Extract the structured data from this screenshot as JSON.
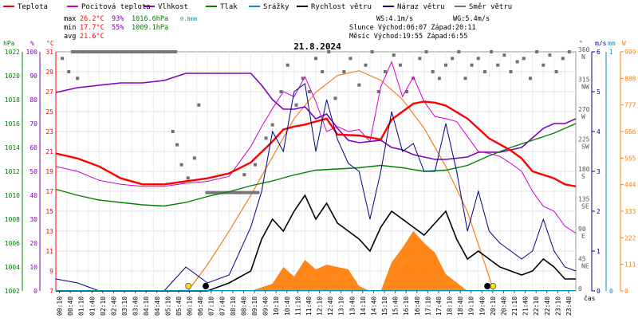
{
  "chart_data": {
    "type": "line",
    "title": "21.8.2024",
    "legend": [
      {
        "name": "Teplota",
        "color": "#ff0000"
      },
      {
        "name": "Pocitová teplota",
        "color": "#d000d0"
      },
      {
        "name": "Vlhkost",
        "color": "#8000c0"
      },
      {
        "name": "Tlak",
        "color": "#008000"
      },
      {
        "name": "Srážky",
        "color": "#0090c0"
      },
      {
        "name": "Rychlost větru",
        "color": "#000000"
      },
      {
        "name": "Náraz větru",
        "color": "#000080"
      },
      {
        "name": "Směr větru",
        "color": "#707070"
      }
    ],
    "stats": {
      "max": {
        "label": "max",
        "temp": "26.2°C",
        "humidity": "93%",
        "pressure": "1016.6hPa",
        "rain": "0.0mm"
      },
      "min": {
        "label": "min",
        "temp": "17.7°C",
        "humidity": "55%",
        "pressure": "1009.1hPa"
      },
      "avg": {
        "label": "avg",
        "temp": "21.6°C"
      }
    },
    "info": {
      "ws": "WS:4.1m/s",
      "wg": "WG:5.4m/s",
      "sun": "Slunce Východ:06:07  Západ:20:11",
      "moon": "Měsíc  Východ:19:55  Západ:6:55"
    },
    "axis_titles": {
      "hpa": "hPa",
      "pct": "%",
      "degc": "°C",
      "deg": "°",
      "ms": "m/s",
      "mm": "mm",
      "wm2": "W",
      "time": "čas"
    },
    "axes": {
      "hpa_ticks": [
        "1022",
        "1020",
        "1018",
        "1016",
        "1014",
        "1012",
        "1010",
        "1008",
        "1006",
        "1004",
        "1002"
      ],
      "pct_ticks": [
        "100",
        "90",
        "80",
        "70",
        "60",
        "50",
        "40",
        "30",
        "20",
        "10",
        "0"
      ],
      "degc_ticks": [
        "31",
        "29",
        "27",
        "25",
        "23",
        "21",
        "19",
        "17",
        "15",
        "13",
        "11",
        "9",
        "7"
      ],
      "dir_ticks": [
        {
          "deg": "360",
          "dir": "N"
        },
        {
          "deg": "315",
          "dir": "NW"
        },
        {
          "deg": "270",
          "dir": "W"
        },
        {
          "deg": "225",
          "dir": "SW"
        },
        {
          "deg": "180",
          "dir": "S"
        },
        {
          "deg": "135",
          "dir": "SE"
        },
        {
          "deg": "90",
          "dir": "E"
        },
        {
          "deg": "45",
          "dir": "NE"
        },
        {
          "deg": "0",
          "dir": ""
        }
      ],
      "ms_ticks": [
        "6",
        "5",
        "4",
        "3",
        "2",
        "1",
        "0"
      ],
      "mm_ticks": [
        "1",
        "0"
      ],
      "wm2_ticks": [
        "999",
        "888",
        "777",
        "666",
        "555",
        "444",
        "333",
        "222",
        "111",
        "0"
      ],
      "time_ticks": [
        "00:10",
        "00:40",
        "01:10",
        "01:40",
        "02:10",
        "02:40",
        "03:10",
        "03:40",
        "04:10",
        "04:40",
        "05:10",
        "05:40",
        "06:10",
        "06:40",
        "07:10",
        "07:40",
        "08:10",
        "08:40",
        "09:10",
        "09:40",
        "10:10",
        "10:40",
        "11:10",
        "11:40",
        "12:10",
        "12:40",
        "13:10",
        "13:40",
        "14:10",
        "14:40",
        "15:10",
        "15:40",
        "16:10",
        "16:40",
        "17:10",
        "17:40",
        "18:10",
        "18:40",
        "19:10",
        "19:40",
        "20:10",
        "20:40",
        "21:10",
        "21:40",
        "22:10",
        "22:40",
        "23:10",
        "23:40"
      ]
    },
    "units": {
      "temp": "°C",
      "humidity": "%",
      "pressure": "hPa",
      "wind": "m/s",
      "direction": "°",
      "rain": "mm",
      "radiation": "W/m²"
    },
    "x_range_hours": [
      0,
      24
    ],
    "temperature": {
      "t": [
        0,
        1,
        2,
        3,
        4,
        5,
        6,
        7,
        8,
        9,
        10,
        10.5,
        11,
        11.5,
        12,
        12.5,
        13,
        14,
        15,
        15.5,
        16,
        16.5,
        17,
        17.5,
        18,
        19,
        19.5,
        20,
        21,
        21.5,
        22,
        23,
        23.5,
        24
      ],
      "values": [
        20.8,
        20.3,
        19.5,
        18.3,
        17.7,
        17.7,
        18.0,
        18.3,
        18.8,
        19.9,
        22.0,
        23.2,
        23.5,
        23.7,
        24.0,
        24.3,
        22.7,
        22.6,
        22.2,
        24.2,
        25.0,
        25.8,
        26.0,
        25.9,
        25.6,
        24.3,
        23.3,
        22.3,
        21.1,
        20.3,
        19.0,
        18.3,
        17.7,
        17.5
      ]
    },
    "feels_like": {
      "t": [
        0,
        1,
        2,
        3,
        4,
        5,
        6,
        7,
        8,
        9,
        9.5,
        10,
        10.5,
        11,
        11.5,
        12,
        12.5,
        13,
        13.5,
        14,
        14.5,
        15,
        15.5,
        16,
        16.5,
        17,
        17.5,
        18,
        18.5,
        19,
        19.5,
        20,
        20.5,
        21,
        21.5,
        22,
        22.5,
        23,
        23.5,
        24
      ],
      "values": [
        19.5,
        19.0,
        18.1,
        17.7,
        17.5,
        17.5,
        17.8,
        18.0,
        18.5,
        21.5,
        23.5,
        25.3,
        27.0,
        26.5,
        28.5,
        26.0,
        23.0,
        23.5,
        23.0,
        23.2,
        22.0,
        27.5,
        30.0,
        26.5,
        28.5,
        26.0,
        24.5,
        24.3,
        24.0,
        22.5,
        21.0,
        20.8,
        20.5,
        19.8,
        19.0,
        17.0,
        15.5,
        15.0,
        13.5,
        12.8
      ]
    },
    "humidity": {
      "t": [
        0,
        1,
        2,
        3,
        4,
        5,
        6,
        7,
        8,
        9,
        9.5,
        10,
        10.5,
        11,
        11.5,
        12,
        12.5,
        13,
        13.5,
        14,
        15,
        15.5,
        16,
        16.5,
        17,
        17.5,
        18,
        19,
        19.5,
        20,
        20.5,
        21,
        21.5,
        22,
        22.5,
        23,
        23.5,
        24
      ],
      "values": [
        83,
        85,
        86,
        87,
        87,
        88,
        91,
        91,
        91,
        91,
        86,
        80,
        76,
        76,
        77,
        72,
        74,
        68,
        63,
        62,
        63,
        60,
        59,
        57,
        56,
        55,
        55,
        56,
        58,
        58,
        58,
        59,
        60,
        64,
        68,
        70,
        70,
        72
      ]
    },
    "pressure": {
      "t": [
        0,
        1,
        2,
        3,
        4,
        5,
        6,
        7,
        8,
        9,
        10,
        11,
        12,
        13,
        14,
        15,
        16,
        17,
        18,
        19,
        20,
        21,
        22,
        23,
        24
      ],
      "values": [
        1010.5,
        1010.0,
        1009.6,
        1009.4,
        1009.2,
        1009.1,
        1009.4,
        1009.9,
        1010.3,
        1010.8,
        1011.2,
        1011.7,
        1012.1,
        1012.2,
        1012.3,
        1012.5,
        1012.3,
        1012.0,
        1012.1,
        1012.5,
        1013.3,
        1014.0,
        1014.6,
        1015.2,
        1016.0
      ]
    },
    "wind_speed": {
      "t": [
        0,
        1,
        2,
        3,
        4,
        5,
        6,
        7,
        8,
        9,
        9.5,
        10,
        10.5,
        11,
        11.5,
        12,
        12.5,
        13,
        13.5,
        14,
        14.5,
        15,
        15.5,
        16,
        16.5,
        17,
        17.5,
        18,
        18.5,
        19,
        19.5,
        20,
        20.5,
        21,
        21.5,
        22,
        22.5,
        23,
        23.5,
        24
      ],
      "values": [
        0,
        0,
        0,
        0,
        0,
        0,
        0,
        0,
        0.2,
        0.5,
        1.3,
        1.8,
        1.5,
        2.0,
        2.4,
        1.8,
        2.2,
        1.7,
        1.5,
        1.3,
        1.0,
        1.6,
        2.0,
        1.8,
        1.6,
        1.4,
        1.7,
        2.0,
        1.3,
        0.8,
        1.0,
        0.8,
        0.6,
        0.5,
        0.4,
        0.5,
        0.8,
        0.6,
        0.3,
        0.3
      ]
    },
    "wind_gust": {
      "t": [
        0,
        1,
        2,
        3,
        4,
        5,
        6,
        7,
        8,
        9,
        9.5,
        10,
        10.5,
        11,
        11.5,
        12,
        12.5,
        13,
        13.5,
        14,
        14.5,
        15,
        15.5,
        16,
        16.5,
        17,
        17.5,
        18,
        18.5,
        19,
        19.5,
        20,
        20.5,
        21,
        21.5,
        22,
        22.5,
        23,
        23.5,
        24
      ],
      "values": [
        0.3,
        0.2,
        0,
        0,
        0,
        0,
        0.6,
        0.2,
        0.4,
        1.6,
        2.5,
        4.0,
        3.5,
        5.0,
        5.2,
        3.5,
        4.8,
        3.8,
        3.2,
        3.0,
        1.8,
        3.0,
        4.5,
        3.5,
        3.7,
        3.0,
        3.0,
        4.2,
        3.0,
        1.5,
        2.5,
        1.5,
        1.2,
        1.0,
        0.8,
        1.0,
        1.8,
        1.0,
        0.6,
        0.5
      ]
    },
    "wind_direction_scatter_deg": {
      "t": [
        0.3,
        0.6,
        1.0,
        5.4,
        5.6,
        5.8,
        6.1,
        6.4,
        6.6,
        8.7,
        9.2,
        9.7,
        10.0,
        10.4,
        10.7,
        11.1,
        11.4,
        11.7,
        12.0,
        12.3,
        12.6,
        12.9,
        13.3,
        13.6,
        14.0,
        14.3,
        14.6,
        14.9,
        15.2,
        15.6,
        15.9,
        16.2,
        16.5,
        16.8,
        17.1,
        17.4,
        17.7,
        18.0,
        18.3,
        18.6,
        18.9,
        19.2,
        19.5,
        19.8,
        20.1,
        20.4,
        20.7,
        21.0,
        21.3,
        21.6,
        21.9,
        22.2,
        22.5,
        22.8,
        23.1,
        23.4,
        23.7
      ],
      "values": [
        350,
        330,
        320,
        240,
        220,
        190,
        170,
        200,
        280,
        175,
        190,
        230,
        250,
        300,
        340,
        280,
        320,
        300,
        350,
        330,
        360,
        290,
        330,
        350,
        310,
        340,
        360,
        300,
        330,
        355,
        340,
        300,
        320,
        350,
        360,
        330,
        320,
        340,
        350,
        360,
        320,
        340,
        350,
        330,
        360,
        340,
        355,
        330,
        345,
        350,
        320,
        360,
        340,
        355,
        330,
        350,
        360
      ]
    },
    "wind_direction_bars": [
      {
        "from_h": 0.7,
        "to_h": 5.6,
        "deg": 360
      },
      {
        "from_h": 6.9,
        "to_h": 9.4,
        "deg": 148
      }
    ],
    "solar_radiation_curve": {
      "t": [
        6.1,
        7,
        8,
        9,
        10,
        11,
        12,
        13,
        14,
        15,
        16,
        17,
        18,
        19,
        20,
        20.2
      ],
      "values": [
        0,
        110,
        250,
        400,
        560,
        720,
        830,
        900,
        920,
        880,
        800,
        680,
        520,
        330,
        60,
        0
      ]
    },
    "solar_radiation_measured": {
      "t": [
        8,
        9,
        10,
        10.5,
        11,
        11.5,
        12,
        12.5,
        13,
        13.5,
        14,
        14.5,
        15,
        15.5,
        16,
        16.5,
        17,
        17.5,
        18,
        19
      ],
      "values": [
        0,
        0,
        30,
        100,
        60,
        130,
        90,
        110,
        100,
        90,
        20,
        0,
        0,
        120,
        180,
        250,
        200,
        160,
        70,
        0
      ]
    },
    "sun_markers": [
      {
        "kind": "moonset",
        "time": "06:55",
        "t": 6.92
      },
      {
        "kind": "sunrise",
        "time": "06:07",
        "t": 6.12
      },
      {
        "kind": "sunset",
        "time": "20:11",
        "t": 20.18
      },
      {
        "kind": "moonrise",
        "time": "19:55",
        "t": 19.92
      }
    ]
  }
}
